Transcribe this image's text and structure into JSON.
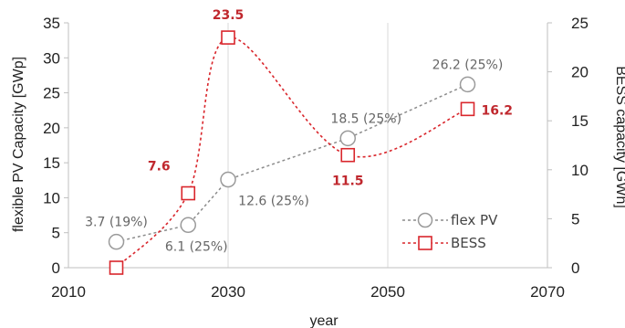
{
  "chart_data": {
    "type": "line",
    "xlabel": "year",
    "ylabel_left": "flexible PV Capacity [GWp]",
    "ylabel_right": "BESS capacity [GWh]",
    "xlim": [
      2010,
      2070
    ],
    "ylim_left": [
      0,
      35
    ],
    "ylim_right": [
      0,
      25
    ],
    "x_ticks": [
      "2010",
      "2030",
      "2050",
      "2070"
    ],
    "y_ticks_left": [
      "0",
      "5",
      "10",
      "15",
      "20",
      "25",
      "30",
      "35"
    ],
    "y_ticks_right": [
      "0",
      "5",
      "10",
      "15",
      "20",
      "25"
    ],
    "grid": "vertical",
    "legend": "bottom-right",
    "series": [
      {
        "name": "flex PV",
        "axis": "left",
        "color": "#8c8c8c",
        "marker": "circle",
        "x": [
          2016,
          2025,
          2030,
          2045,
          2060
        ],
        "values": [
          3.7,
          6.1,
          12.6,
          18.5,
          26.2
        ],
        "labels": [
          "3.7 (19%)",
          "6.1 (25%)",
          "12.6 (25%)",
          "18.5 (25%)",
          "26.2 (25%)"
        ]
      },
      {
        "name": "BESS",
        "axis": "right",
        "color": "#d9262c",
        "marker": "square",
        "x": [
          2016,
          2025,
          2030,
          2045,
          2060
        ],
        "values": [
          0,
          7.6,
          23.5,
          11.5,
          16.2
        ],
        "labels": [
          "",
          "7.6",
          "23.5",
          "11.5",
          "16.2"
        ]
      }
    ]
  }
}
